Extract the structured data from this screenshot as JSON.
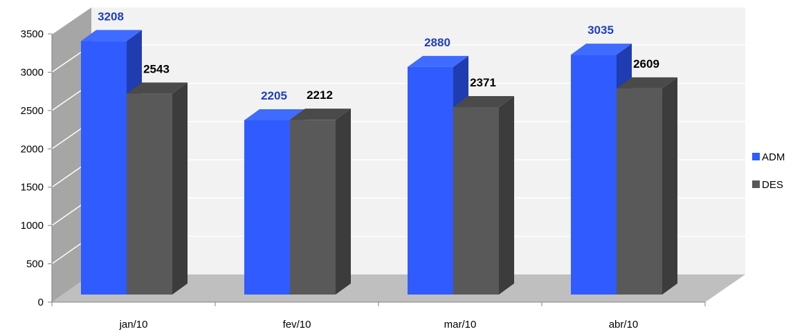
{
  "chart_data": {
    "type": "bar",
    "categories": [
      "jan/10",
      "fev/10",
      "mar/10",
      "abr/10"
    ],
    "series": [
      {
        "name": "ADM",
        "values": [
          3208,
          2205,
          2880,
          3035
        ],
        "color": "#2f5bff",
        "side": "#1f3db0",
        "top": "#3f6cff",
        "label_color": "#1f3fbf"
      },
      {
        "name": "DES",
        "values": [
          2543,
          2212,
          2371,
          2609
        ],
        "color": "#595959",
        "side": "#3c3c3c",
        "top": "#4a4a4a",
        "label_color": "#000000"
      }
    ],
    "yticks": [
      0,
      500,
      1000,
      1500,
      2000,
      2500,
      3000,
      3500
    ],
    "ylim": [
      0,
      3500
    ],
    "legend_position": "right",
    "grid": true
  }
}
